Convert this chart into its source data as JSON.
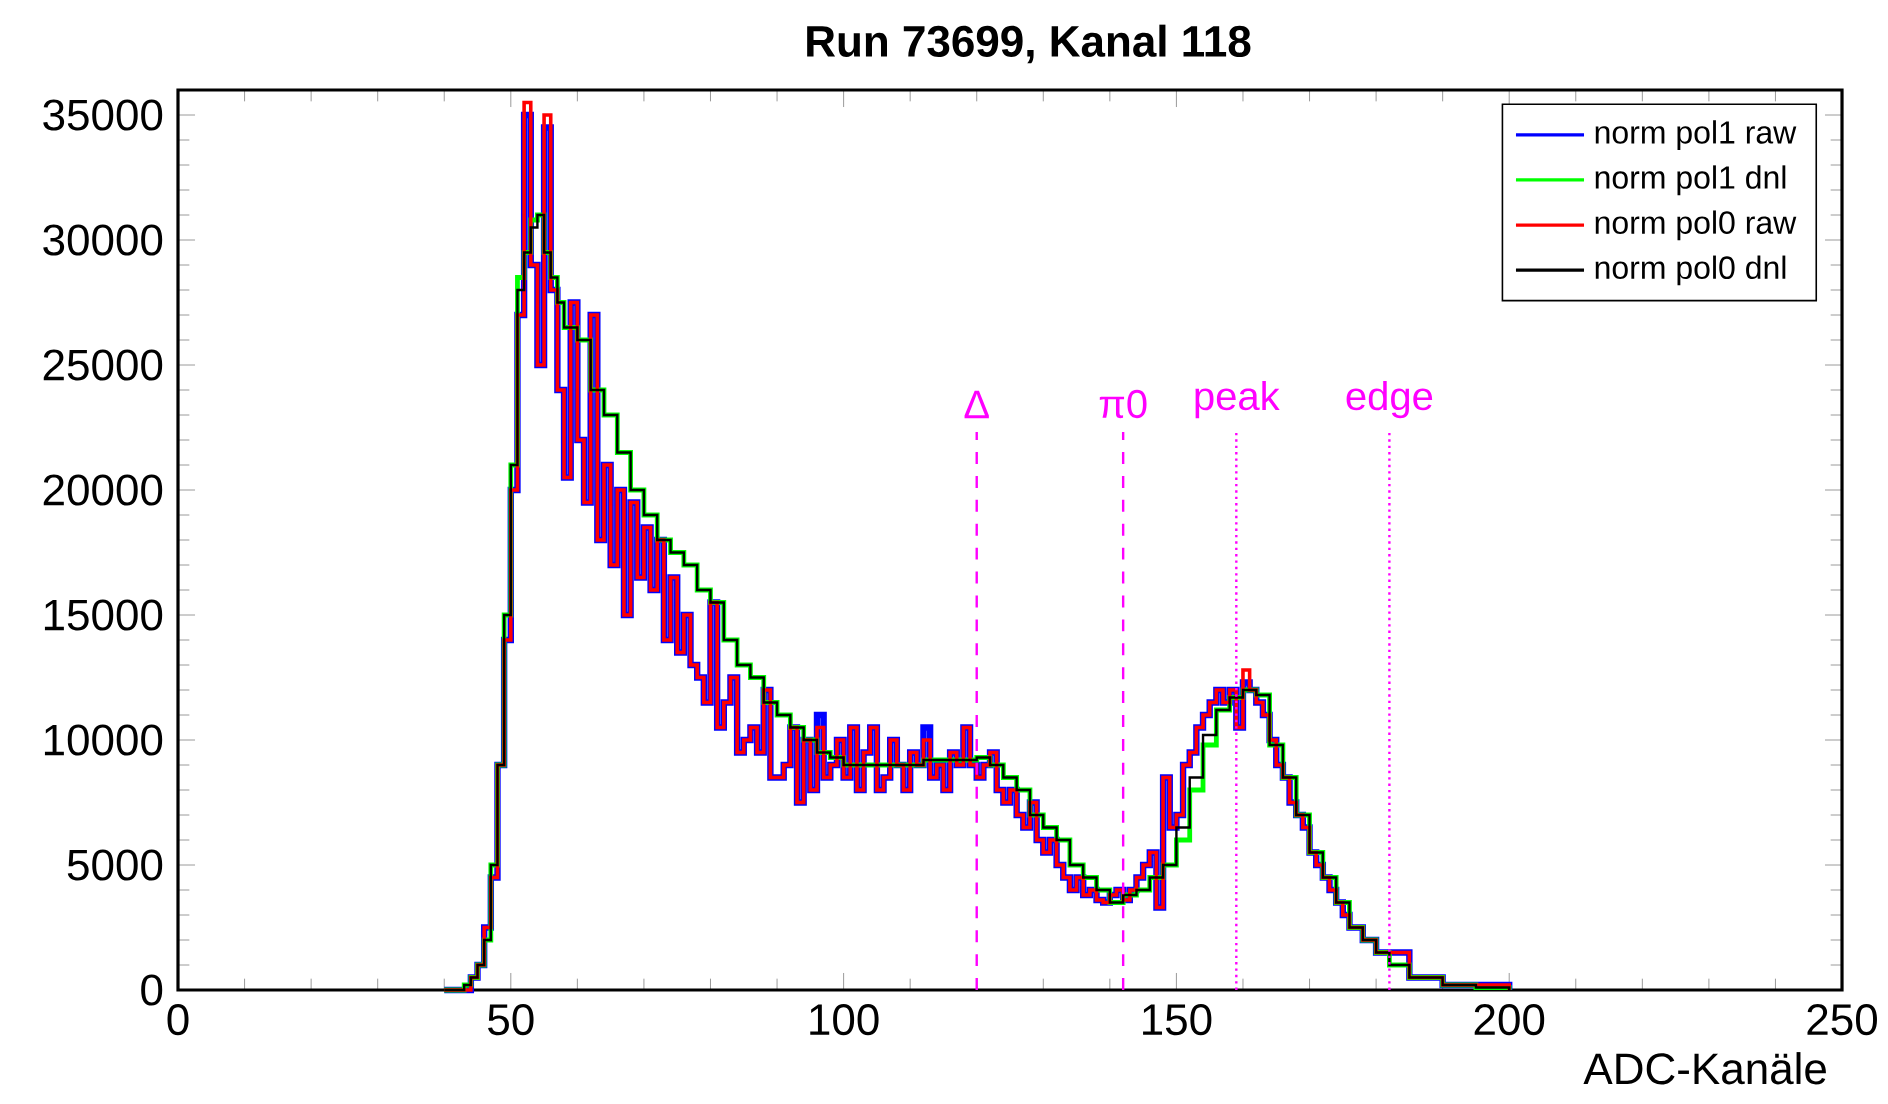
{
  "chart_data": {
    "type": "step",
    "title": "Run 73699, Kanal 118",
    "xlabel": "ADC-Kanäle",
    "xlim": [
      0,
      250
    ],
    "ylim": [
      0,
      36000
    ],
    "xticks": [
      0,
      50,
      100,
      150,
      200,
      250
    ],
    "yticks": [
      0,
      5000,
      10000,
      15000,
      20000,
      25000,
      30000,
      35000
    ],
    "grid": false,
    "legend": "top right",
    "series": [
      {
        "name": "norm pol1 raw",
        "color": "#0000ff",
        "x": [
          40,
          44,
          45,
          46,
          47,
          48,
          49,
          50,
          51,
          52,
          53,
          54,
          55,
          56,
          57,
          58,
          59,
          60,
          61,
          62,
          63,
          64,
          65,
          66,
          67,
          68,
          69,
          70,
          71,
          72,
          73,
          74,
          75,
          76,
          77,
          78,
          79,
          80,
          81,
          82,
          83,
          84,
          85,
          86,
          87,
          88,
          89,
          90,
          91,
          92,
          93,
          94,
          95,
          96,
          97,
          98,
          99,
          100,
          101,
          102,
          103,
          104,
          105,
          106,
          107,
          108,
          109,
          110,
          111,
          112,
          113,
          114,
          115,
          116,
          117,
          118,
          119,
          120,
          121,
          122,
          123,
          124,
          125,
          126,
          127,
          128,
          129,
          130,
          131,
          132,
          133,
          134,
          135,
          136,
          137,
          138,
          139,
          140,
          141,
          142,
          143,
          144,
          145,
          146,
          147,
          148,
          149,
          150,
          151,
          152,
          153,
          154,
          155,
          156,
          157,
          158,
          159,
          160,
          161,
          162,
          163,
          164,
          165,
          166,
          167,
          168,
          169,
          170,
          171,
          172,
          173,
          174,
          175,
          176,
          178,
          180,
          185,
          190,
          200
        ],
        "values": [
          0,
          500,
          1000,
          2500,
          4500,
          9000,
          14000,
          20000,
          27000,
          35000,
          29000,
          25000,
          34500,
          28000,
          24000,
          20500,
          27500,
          22000,
          19500,
          27000,
          18000,
          21000,
          17000,
          20000,
          15000,
          19500,
          16500,
          18500,
          16000,
          18000,
          14000,
          16500,
          13500,
          15000,
          13000,
          12500,
          11500,
          15500,
          10500,
          11500,
          12500,
          9500,
          10000,
          10500,
          9500,
          12000,
          8500,
          8500,
          9000,
          10500,
          7500,
          10000,
          8000,
          11000,
          8500,
          9000,
          10000,
          8500,
          10500,
          8000,
          9500,
          10500,
          8000,
          8500,
          10000,
          9000,
          8000,
          9500,
          9000,
          10500,
          8500,
          9000,
          8000,
          9500,
          9000,
          10500,
          9000,
          8500,
          9000,
          9500,
          8000,
          7500,
          8000,
          7000,
          6500,
          7500,
          6000,
          5500,
          6000,
          5000,
          4500,
          4000,
          4500,
          3800,
          4000,
          3600,
          3500,
          3800,
          4000,
          3600,
          4000,
          4500,
          5000,
          5500,
          3300,
          8500,
          6500,
          7000,
          9000,
          9500,
          10500,
          11000,
          11500,
          12000,
          11500,
          12000,
          10500,
          12300,
          12000,
          11500,
          11000,
          10000,
          9000,
          8500,
          7500,
          7000,
          6500,
          5500,
          5000,
          4500,
          4000,
          3500,
          3000,
          2500,
          2000,
          1500,
          500,
          200,
          0
        ]
      },
      {
        "name": "norm pol1 dnl",
        "color": "#00ff00",
        "x": [
          40,
          43,
          44,
          45,
          46,
          47,
          48,
          49,
          50,
          51,
          52,
          53,
          54,
          55,
          56,
          57,
          58,
          60,
          62,
          64,
          66,
          68,
          70,
          72,
          74,
          76,
          78,
          80,
          82,
          84,
          86,
          88,
          90,
          92,
          94,
          96,
          98,
          100,
          104,
          108,
          112,
          116,
          120,
          122,
          124,
          126,
          128,
          130,
          132,
          134,
          136,
          138,
          140,
          142,
          144,
          146,
          148,
          150,
          152,
          154,
          156,
          158,
          160,
          162,
          164,
          166,
          168,
          170,
          172,
          174,
          176,
          178,
          180,
          182,
          185,
          190,
          195,
          200
        ],
        "values": [
          0,
          200,
          500,
          1000,
          2000,
          5000,
          9000,
          15000,
          21000,
          28500,
          29500,
          30800,
          31000,
          29500,
          28500,
          27500,
          26500,
          26000,
          24000,
          23000,
          21500,
          20000,
          19000,
          18000,
          17500,
          17000,
          16000,
          15500,
          14000,
          13000,
          12500,
          11500,
          11000,
          10500,
          10000,
          9500,
          9300,
          9000,
          9000,
          9000,
          9200,
          9200,
          9300,
          9000,
          8500,
          8000,
          7000,
          6500,
          6000,
          5000,
          4500,
          4000,
          3500,
          3800,
          4000,
          4500,
          5000,
          6000,
          8000,
          9800,
          11200,
          11700,
          12000,
          11800,
          9800,
          8500,
          7000,
          5500,
          4500,
          3500,
          2500,
          2000,
          1500,
          1000,
          500,
          200,
          100,
          0
        ]
      },
      {
        "name": "norm pol0 raw",
        "color": "#ff0000",
        "x": [
          40,
          44,
          45,
          46,
          47,
          48,
          49,
          50,
          51,
          52,
          53,
          54,
          55,
          56,
          57,
          58,
          59,
          60,
          61,
          62,
          63,
          64,
          65,
          66,
          67,
          68,
          69,
          70,
          71,
          72,
          73,
          74,
          75,
          76,
          77,
          78,
          79,
          80,
          81,
          82,
          83,
          84,
          85,
          86,
          87,
          88,
          89,
          90,
          91,
          92,
          93,
          94,
          95,
          96,
          97,
          98,
          99,
          100,
          101,
          102,
          103,
          104,
          105,
          106,
          107,
          108,
          109,
          110,
          111,
          112,
          113,
          114,
          115,
          116,
          117,
          118,
          119,
          120,
          121,
          122,
          123,
          124,
          125,
          126,
          127,
          128,
          129,
          130,
          131,
          132,
          133,
          134,
          135,
          136,
          137,
          138,
          139,
          140,
          141,
          142,
          143,
          144,
          145,
          146,
          147,
          148,
          149,
          150,
          151,
          152,
          153,
          154,
          155,
          156,
          157,
          158,
          159,
          160,
          161,
          162,
          163,
          164,
          165,
          166,
          167,
          168,
          169,
          170,
          171,
          172,
          173,
          174,
          175,
          176,
          178,
          180,
          185,
          190,
          200
        ],
        "values": [
          0,
          500,
          1000,
          2500,
          4500,
          9000,
          14000,
          20000,
          27000,
          35500,
          29000,
          25000,
          35000,
          28000,
          24000,
          20500,
          27500,
          22000,
          19500,
          27000,
          18000,
          21000,
          17000,
          20000,
          15000,
          19500,
          16500,
          18500,
          16000,
          18000,
          14000,
          16500,
          13500,
          15000,
          13000,
          12500,
          11500,
          15500,
          10500,
          11500,
          12500,
          9500,
          10000,
          10500,
          9500,
          12000,
          8500,
          8500,
          9000,
          10500,
          7500,
          10000,
          8000,
          10500,
          8500,
          9000,
          10000,
          8500,
          10500,
          8000,
          9500,
          10500,
          8000,
          8500,
          10000,
          9000,
          8000,
          9500,
          9000,
          10000,
          8500,
          9000,
          8000,
          9500,
          9000,
          10500,
          9000,
          8500,
          9000,
          9500,
          8000,
          7500,
          8000,
          7000,
          6500,
          7500,
          6000,
          5500,
          6000,
          5000,
          4500,
          4000,
          4500,
          3800,
          4000,
          3600,
          3500,
          3800,
          4000,
          3600,
          4000,
          4500,
          5000,
          5500,
          3300,
          8500,
          6500,
          7000,
          9000,
          9500,
          10500,
          11000,
          11500,
          12000,
          11500,
          12000,
          10500,
          12800,
          12000,
          11500,
          11000,
          10000,
          9000,
          8500,
          7500,
          7000,
          6500,
          5500,
          5000,
          4500,
          4000,
          3500,
          3000,
          2500,
          2000,
          1500,
          500,
          200,
          0
        ]
      },
      {
        "name": "norm pol0 dnl",
        "color": "#000000",
        "x": [
          40,
          43,
          44,
          45,
          46,
          47,
          48,
          49,
          50,
          51,
          52,
          53,
          54,
          55,
          56,
          57,
          58,
          60,
          62,
          64,
          66,
          68,
          70,
          72,
          74,
          76,
          78,
          80,
          82,
          84,
          86,
          88,
          90,
          92,
          94,
          96,
          98,
          100,
          104,
          108,
          112,
          116,
          120,
          122,
          124,
          126,
          128,
          130,
          132,
          134,
          136,
          138,
          140,
          142,
          144,
          146,
          148,
          150,
          152,
          154,
          156,
          158,
          160,
          162,
          164,
          166,
          168,
          170,
          172,
          174,
          176,
          178,
          180,
          182,
          185,
          190,
          195,
          200
        ],
        "values": [
          0,
          200,
          500,
          1000,
          2000,
          5000,
          9000,
          15000,
          21000,
          28000,
          29500,
          30500,
          31000,
          29500,
          28500,
          27500,
          26500,
          26000,
          24000,
          23000,
          21500,
          20000,
          19000,
          18000,
          17500,
          17000,
          16000,
          15500,
          14000,
          13000,
          12500,
          11500,
          11000,
          10500,
          10000,
          9500,
          9300,
          9000,
          9000,
          9000,
          9200,
          9200,
          9300,
          9000,
          8500,
          8000,
          7000,
          6500,
          6000,
          5000,
          4500,
          4000,
          3500,
          3800,
          4000,
          4500,
          5000,
          6500,
          8500,
          10200,
          11200,
          11700,
          12000,
          11800,
          9800,
          8500,
          7000,
          5500,
          4500,
          3500,
          2500,
          2000,
          1500,
          1000,
          500,
          200,
          100,
          0
        ]
      }
    ],
    "ref_lines": [
      {
        "axis": "x",
        "value": 120,
        "label": "Δ",
        "color": "#ff00ff",
        "line_style": "dashed"
      },
      {
        "axis": "x",
        "value": 142,
        "label": "π0",
        "color": "#ff00ff",
        "line_style": "dashed"
      },
      {
        "axis": "x",
        "value": 159,
        "label": "peak",
        "color": "#ff00ff",
        "line_style": "dotted"
      },
      {
        "axis": "x",
        "value": 182,
        "label": "edge",
        "color": "#ff00ff",
        "line_style": "dotted"
      }
    ]
  }
}
